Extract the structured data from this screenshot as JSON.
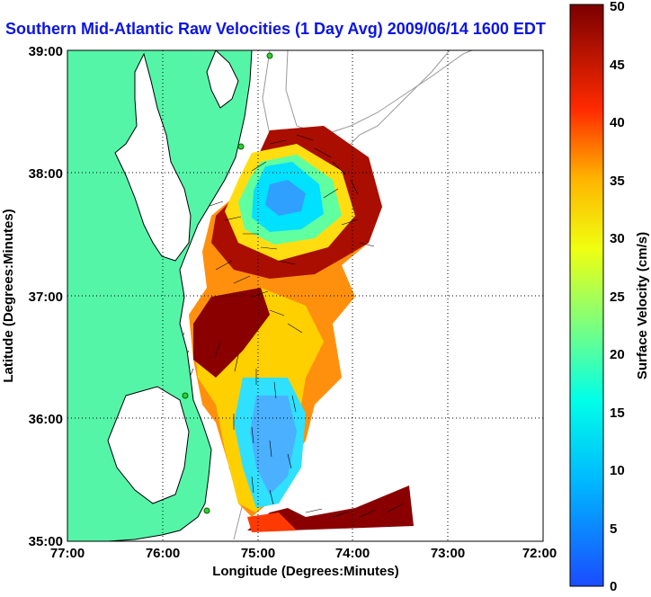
{
  "title": "Southern Mid-Atlantic Raw Velocities (1 Day Avg) 2009/06/14 1600 EDT",
  "axes": {
    "xlabel": "Longitude (Degrees:Minutes)",
    "ylabel": "Latitude (Degrees:Minutes)",
    "x_ticks": [
      "77:00",
      "76:00",
      "75:00",
      "74:00",
      "73:00",
      "72:00"
    ],
    "y_ticks": [
      "39:00",
      "38:00",
      "37:00",
      "36:00",
      "35:00"
    ],
    "xlim": [
      -77,
      -72
    ],
    "ylim": [
      35,
      39
    ],
    "grid": "dotted"
  },
  "colorbar": {
    "label": "Surface Velocity (cm/s)",
    "min": 0,
    "max": 50,
    "ticks": [
      "0",
      "5",
      "10",
      "15",
      "20",
      "25",
      "30",
      "35",
      "40",
      "45",
      "50"
    ],
    "colormap": "jet"
  },
  "colors": {
    "land": "#55f5a8",
    "coast": "#000000",
    "bathymetry": "#9a9a9a",
    "title": "#0a14e6",
    "station": "#33cc33"
  }
}
